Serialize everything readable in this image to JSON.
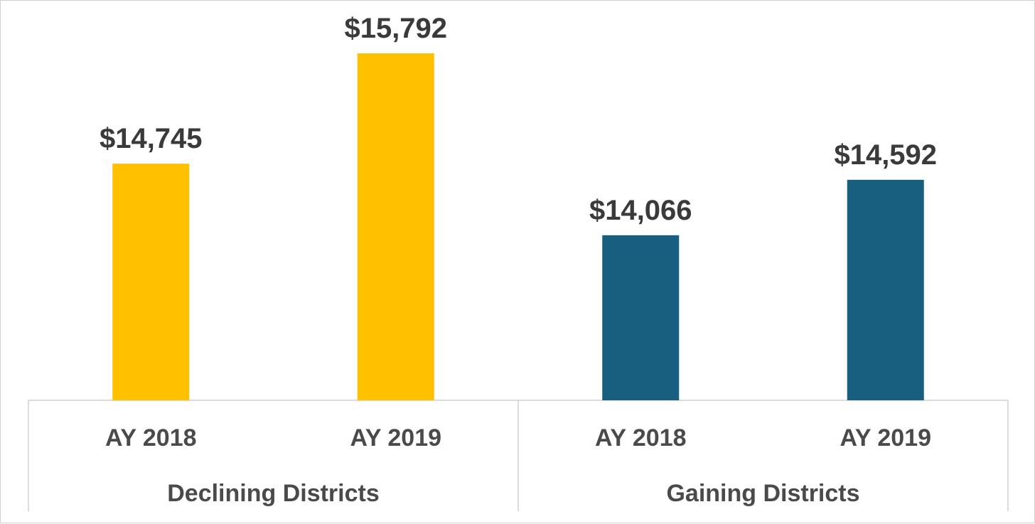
{
  "chart_data": {
    "type": "bar",
    "groups": [
      {
        "name": "Declining Districts",
        "color": "#FFC000",
        "categories": [
          "AY 2018",
          "AY 2019"
        ],
        "values": [
          14745,
          15792
        ],
        "labels": [
          "$14,745",
          "$15,792"
        ]
      },
      {
        "name": "Gaining Districts",
        "color": "#175E7F",
        "categories": [
          "AY 2018",
          "AY 2019"
        ],
        "values": [
          14066,
          14592
        ],
        "labels": [
          "$14,066",
          "$14,592"
        ]
      }
    ],
    "title": "",
    "xlabel": "",
    "ylabel": "",
    "ylim": [
      12500,
      16000
    ],
    "grid": false,
    "legend": "none"
  },
  "colors": {
    "declining": "#FFC000",
    "gaining": "#175E7F",
    "axis_line": "#d0d0d0",
    "text": "#4a4a4a"
  }
}
